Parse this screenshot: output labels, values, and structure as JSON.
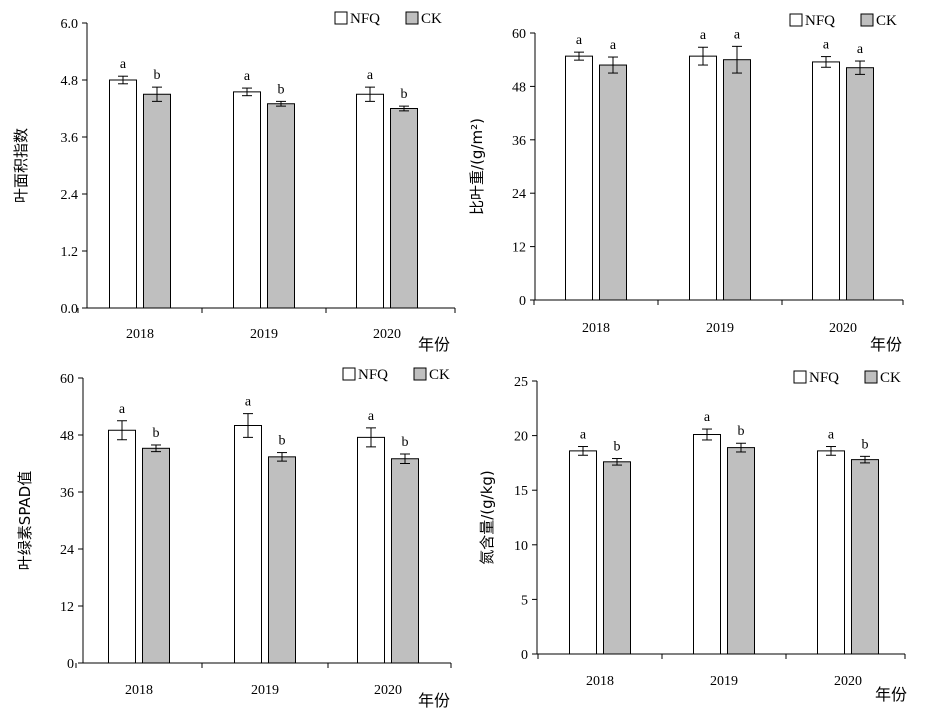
{
  "chart_data": [
    {
      "type": "bar",
      "categories": [
        "2018",
        "2019",
        "2020"
      ],
      "series": [
        {
          "name": "NFQ",
          "values": [
            4.8,
            4.55,
            4.5
          ],
          "errors": [
            0.08,
            0.08,
            0.15
          ],
          "sig": [
            "a",
            "a",
            "a"
          ]
        },
        {
          "name": "CK",
          "values": [
            4.5,
            4.3,
            4.2
          ],
          "errors": [
            0.15,
            0.05,
            0.05
          ],
          "sig": [
            "b",
            "b",
            "b"
          ]
        }
      ],
      "ylabel": "叶面积指数",
      "xlabel": "年份",
      "ylim": [
        0,
        6
      ],
      "yticks": [
        "0.0",
        "1.2",
        "2.4",
        "3.6",
        "4.8",
        "6.0"
      ]
    },
    {
      "type": "bar",
      "categories": [
        "2018",
        "2019",
        "2020"
      ],
      "series": [
        {
          "name": "NFQ",
          "values": [
            54.8,
            54.8,
            53.5
          ],
          "errors": [
            0.9,
            2.0,
            1.2
          ],
          "sig": [
            "a",
            "a",
            "a"
          ]
        },
        {
          "name": "CK",
          "values": [
            52.8,
            54.0,
            52.2
          ],
          "errors": [
            1.8,
            3.0,
            1.5
          ],
          "sig": [
            "a",
            "a",
            "a"
          ]
        }
      ],
      "ylabel": "比叶重/(g/m²)",
      "xlabel": "年份",
      "ylim": [
        0,
        60
      ],
      "yticks": [
        "0",
        "12",
        "24",
        "36",
        "48",
        "60"
      ]
    },
    {
      "type": "bar",
      "categories": [
        "2018",
        "2019",
        "2020"
      ],
      "series": [
        {
          "name": "NFQ",
          "values": [
            49.0,
            50.0,
            47.5
          ],
          "errors": [
            2.0,
            2.5,
            2.0
          ],
          "sig": [
            "a",
            "a",
            "a"
          ]
        },
        {
          "name": "CK",
          "values": [
            45.2,
            43.4,
            43.0
          ],
          "errors": [
            0.7,
            0.9,
            1.0
          ],
          "sig": [
            "b",
            "b",
            "b"
          ]
        }
      ],
      "ylabel": "叶绿素SPAD值",
      "xlabel": "年份",
      "ylim": [
        0,
        60
      ],
      "yticks": [
        "0",
        "12",
        "24",
        "36",
        "48",
        "60"
      ]
    },
    {
      "type": "bar",
      "categories": [
        "2018",
        "2019",
        "2020"
      ],
      "series": [
        {
          "name": "NFQ",
          "values": [
            18.6,
            20.1,
            18.6
          ],
          "errors": [
            0.4,
            0.5,
            0.4
          ],
          "sig": [
            "a",
            "a",
            "a"
          ]
        },
        {
          "name": "CK",
          "values": [
            17.6,
            18.9,
            17.8
          ],
          "errors": [
            0.3,
            0.4,
            0.3
          ],
          "sig": [
            "b",
            "b",
            "b"
          ]
        }
      ],
      "ylabel": "氮含量/(g/kg)",
      "xlabel": "年份",
      "ylim": [
        0,
        25
      ],
      "yticks": [
        "0",
        "5",
        "10",
        "15",
        "20",
        "25"
      ]
    }
  ],
  "colors": {
    "NFQ": "#ffffff",
    "CK": "#bfbfbf",
    "stroke": "#000000"
  }
}
